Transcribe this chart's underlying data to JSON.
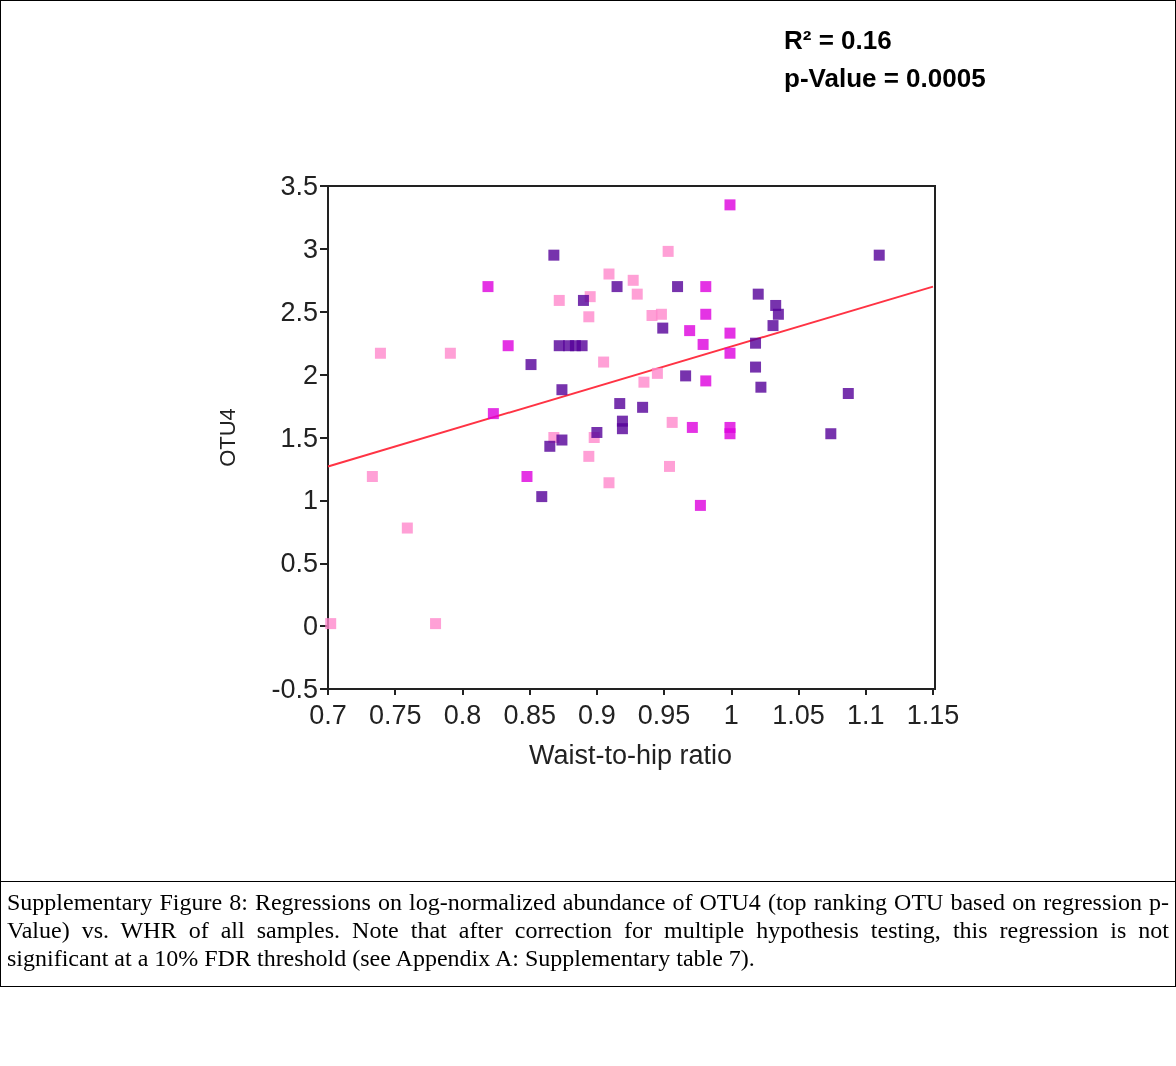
{
  "chart_data": {
    "type": "scatter",
    "xlabel": "Waist-to-hip ratio",
    "ylabel": "OTU4",
    "xlim": [
      0.7,
      1.15
    ],
    "xticks": [
      0.7,
      0.75,
      0.8,
      0.85,
      0.9,
      0.95,
      1,
      1.05,
      1.1,
      1.15
    ],
    "ylim": [
      -0.5,
      3.5
    ],
    "yticks": [
      -0.5,
      0,
      0.5,
      1,
      1.5,
      2,
      2.5,
      3,
      3.5
    ],
    "grid": false,
    "marker": "square",
    "annotations": [
      "R² = 0.16",
      "p-Value = 0.0005",
      "Supplementary Figure 8: Regressions on log-normalized abundance of OTU4 (top ranking OTU based on regression p-Value) vs. WHR of all samples.  Note that after correction for multiple hypothesis testing, this regression is not significant at a 10% FDR threshold (see Appendix A: Supplementary table 7)."
    ],
    "series": [
      {
        "color": "#ff88cc",
        "x": [
          0.702,
          0.733,
          0.739,
          0.759,
          0.78,
          0.791,
          0.868,
          0.872,
          0.894,
          0.895,
          0.898,
          0.894,
          0.905,
          0.909,
          0.909,
          0.927,
          0.93,
          0.935,
          0.941,
          0.945,
          0.948,
          0.953,
          0.954,
          0.956
        ],
        "values": [
          0.02,
          1.19,
          2.17,
          0.78,
          0.02,
          2.17,
          1.5,
          2.59,
          1.35,
          2.62,
          1.5,
          2.46,
          2.1,
          1.14,
          2.8,
          2.75,
          2.64,
          1.94,
          2.47,
          2.01,
          2.48,
          2.98,
          1.27,
          1.62
        ]
      },
      {
        "color": "#dd00dd",
        "x": [
          0.819,
          0.823,
          0.834,
          0.848,
          0.969,
          0.971,
          0.977,
          0.979,
          0.981,
          0.981,
          0.981,
          0.999,
          0.999,
          0.999,
          0.999,
          0.999
        ],
        "values": [
          2.7,
          1.69,
          2.23,
          1.19,
          2.35,
          1.58,
          0.96,
          2.24,
          2.7,
          2.48,
          1.95,
          3.35,
          2.33,
          2.17,
          1.58,
          1.53
        ]
      },
      {
        "color": "#550099",
        "x": [
          0.851,
          0.859,
          0.865,
          0.868,
          0.872,
          0.874,
          0.874,
          0.879,
          0.884,
          0.889,
          0.89,
          0.9,
          0.915,
          0.917,
          0.919,
          0.919,
          0.934,
          0.949,
          0.96,
          0.966,
          1.018,
          1.018,
          1.02,
          1.022,
          1.031,
          1.033,
          1.035,
          1.074,
          1.087,
          1.11
        ],
        "values": [
          2.08,
          1.03,
          1.43,
          2.95,
          2.23,
          1.88,
          1.48,
          2.23,
          2.23,
          2.23,
          2.59,
          1.54,
          2.7,
          1.77,
          1.63,
          1.57,
          1.74,
          2.37,
          2.7,
          1.99,
          2.25,
          2.06,
          2.64,
          1.9,
          2.39,
          2.55,
          2.48,
          1.53,
          1.85,
          2.95
        ]
      },
      {
        "type": "line",
        "marker": "none",
        "color": "#ff3344",
        "x": [
          0.7,
          1.15
        ],
        "values": [
          1.27,
          2.7
        ]
      }
    ]
  }
}
